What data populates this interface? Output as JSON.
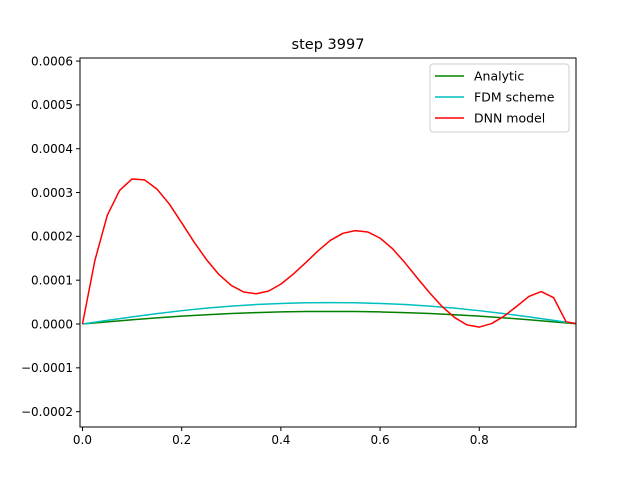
{
  "chart_data": {
    "type": "line",
    "title": "step 3997",
    "xlabel": "",
    "ylabel": "",
    "xlim": [
      -0.005,
      0.995
    ],
    "ylim": [
      -0.000235,
      0.000607
    ],
    "x_ticks": [
      0.0,
      0.2,
      0.4,
      0.6,
      0.8
    ],
    "x_tick_labels": [
      "0.0",
      "0.2",
      "0.4",
      "0.6",
      "0.8"
    ],
    "y_ticks": [
      -0.0002,
      -0.0001,
      0.0,
      0.0001,
      0.0002,
      0.0003,
      0.0004,
      0.0005,
      0.0006
    ],
    "y_tick_labels": [
      "−0.0002",
      "−0.0001",
      "0.0000",
      "0.0001",
      "0.0002",
      "0.0003",
      "0.0004",
      "0.0005",
      "0.0006"
    ],
    "grid": false,
    "legend_position": "top-right",
    "series": [
      {
        "name": "Analytic",
        "color": "#008000",
        "x": [
          0.0,
          0.05,
          0.1,
          0.15,
          0.2,
          0.25,
          0.3,
          0.35,
          0.4,
          0.45,
          0.5,
          0.55,
          0.6,
          0.65,
          0.7,
          0.75,
          0.8,
          0.85,
          0.9,
          0.95,
          1.0
        ],
        "y": [
          0.0,
          4.9e-06,
          9.7e-06,
          1.41e-05,
          1.79e-05,
          2.12e-05,
          2.4e-05,
          2.61e-05,
          2.76e-05,
          2.85e-05,
          2.87e-05,
          2.85e-05,
          2.76e-05,
          2.61e-05,
          2.4e-05,
          2.12e-05,
          1.79e-05,
          1.41e-05,
          9.7e-06,
          4.9e-06,
          0.0
        ]
      },
      {
        "name": "FDM scheme",
        "color": "#00bfbf",
        "x": [
          0.0,
          0.05,
          0.1,
          0.15,
          0.2,
          0.25,
          0.3,
          0.35,
          0.4,
          0.45,
          0.5,
          0.55,
          0.6,
          0.65,
          0.7,
          0.75,
          0.8,
          0.85,
          0.9,
          0.95,
          1.0
        ],
        "y": [
          0.0,
          8.2e-06,
          1.62e-05,
          2.37e-05,
          3.04e-05,
          3.62e-05,
          4.09e-05,
          4.45e-05,
          4.69e-05,
          4.84e-05,
          4.88e-05,
          4.84e-05,
          4.69e-05,
          4.45e-05,
          4.09e-05,
          3.62e-05,
          3.04e-05,
          2.37e-05,
          1.62e-05,
          8.2e-06,
          0.0
        ]
      },
      {
        "name": "DNN model",
        "color": "#ff0000",
        "x": [
          0.0,
          0.025,
          0.05,
          0.075,
          0.1,
          0.125,
          0.15,
          0.175,
          0.2,
          0.225,
          0.25,
          0.275,
          0.3,
          0.325,
          0.35,
          0.375,
          0.4,
          0.425,
          0.45,
          0.475,
          0.5,
          0.525,
          0.55,
          0.575,
          0.6,
          0.625,
          0.65,
          0.675,
          0.7,
          0.725,
          0.75,
          0.775,
          0.8,
          0.825,
          0.85,
          0.875,
          0.9,
          0.925,
          0.95,
          0.975,
          1.0
        ],
        "y": [
          0.0,
          0.000145,
          0.000248,
          0.000305,
          0.000331,
          0.000329,
          0.000308,
          0.000274,
          0.000231,
          0.000187,
          0.000147,
          0.000113,
          8.8e-05,
          7.3e-05,
          6.9e-05,
          7.5e-05,
          9.1e-05,
          0.000114,
          0.00014,
          0.000167,
          0.000191,
          0.000207,
          0.000213,
          0.00021,
          0.000196,
          0.000172,
          0.00014,
          0.000105,
          7.1e-05,
          4e-05,
          1.5e-05,
          -2e-06,
          -7e-06,
          1e-06,
          1.8e-05,
          4e-05,
          6.3e-05,
          7.4e-05,
          6e-05,
          5e-06,
          0.0
        ]
      }
    ]
  }
}
